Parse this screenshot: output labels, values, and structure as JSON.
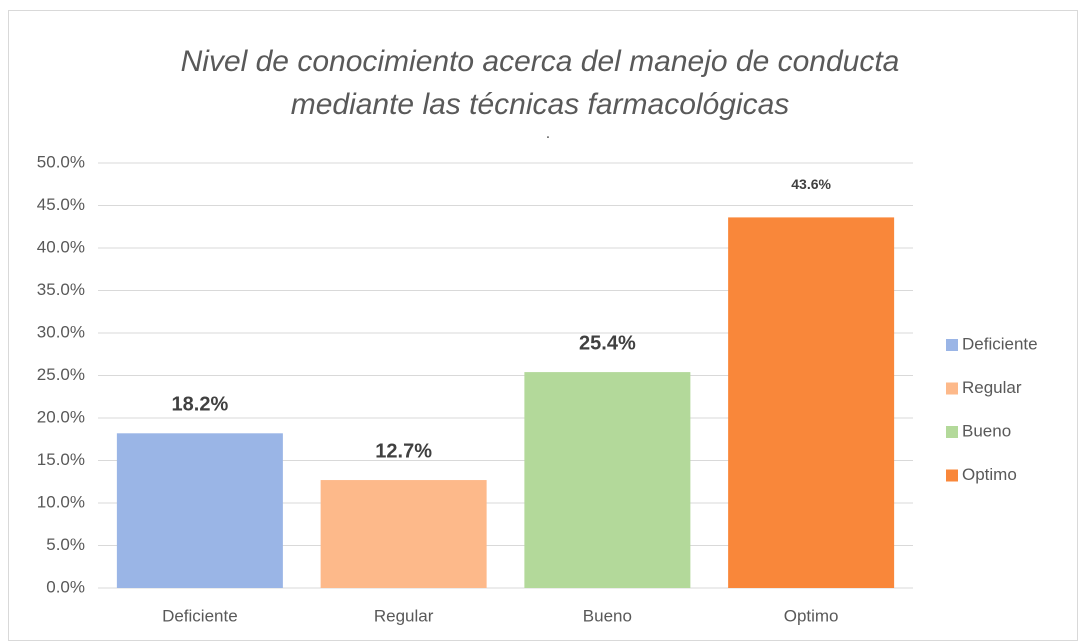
{
  "chart_data": {
    "type": "bar",
    "title": "Nivel de conocimiento acerca del manejo de conducta mediante las técnicas farmacológicas",
    "subtitle": ".",
    "categories": [
      "Deficiente",
      "Regular",
      "Bueno",
      "Optimo"
    ],
    "values": [
      18.2,
      12.7,
      25.4,
      43.6
    ],
    "value_labels": [
      "18.2%",
      "12.7%",
      "25.4%",
      "43.6%"
    ],
    "colors": [
      "#9ab5e6",
      "#fdb98a",
      "#b3d99a",
      "#f9873a"
    ],
    "ylim": [
      0,
      50
    ],
    "yticks": [
      {
        "value": 0,
        "label": "0.0%"
      },
      {
        "value": 5,
        "label": "5.0%"
      },
      {
        "value": 10,
        "label": "10.0%"
      },
      {
        "value": 15,
        "label": "15.0%"
      },
      {
        "value": 20,
        "label": "20.0%"
      },
      {
        "value": 25,
        "label": "25.0%"
      },
      {
        "value": 30,
        "label": "30.0%"
      },
      {
        "value": 35,
        "label": "35.0%"
      },
      {
        "value": 40,
        "label": "40.0%"
      },
      {
        "value": 45,
        "label": "45.0%"
      },
      {
        "value": 50,
        "label": "50.0%"
      }
    ],
    "grid": true,
    "legend": "right"
  }
}
